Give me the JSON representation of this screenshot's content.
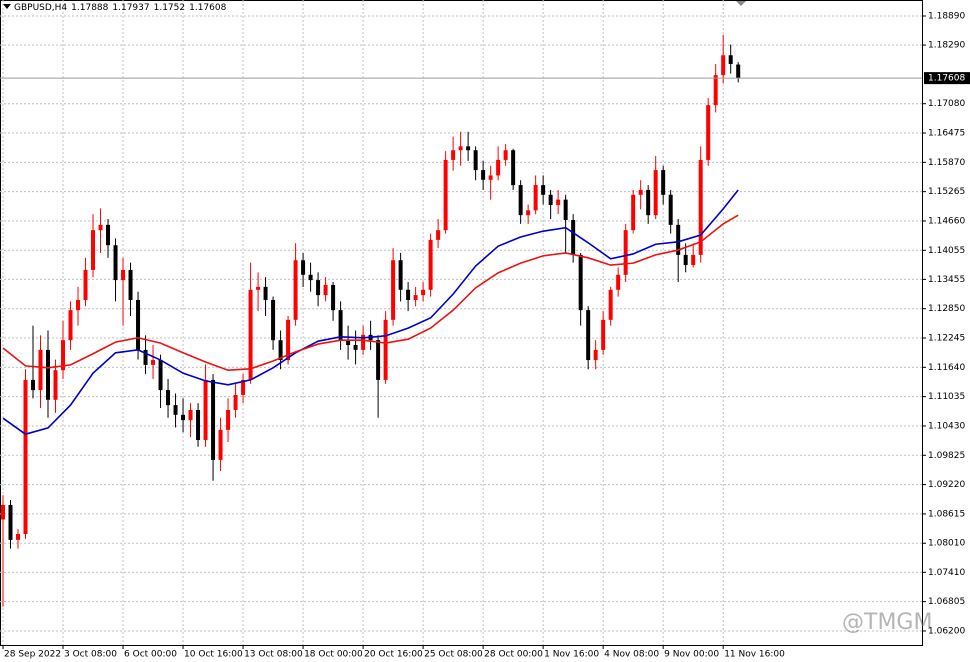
{
  "chart_data": {
    "type": "candlestick",
    "title": "GBPUSD,H4",
    "watermark": "@TMGM",
    "bull_color": "#ff0000",
    "bear_color": "#000000",
    "grid": true,
    "xlim": [
      -0.4,
      122.5
    ],
    "ylim": [
      1.0591,
      1.1922
    ],
    "xticks": [
      {
        "value": 0,
        "label": "28 Sep 2022"
      },
      {
        "value": 8,
        "label": "3 Oct 08:00"
      },
      {
        "value": 16,
        "label": "6 Oct 00:00"
      },
      {
        "value": 24,
        "label": "10 Oct 16:00"
      },
      {
        "value": 32,
        "label": "13 Oct 08:00"
      },
      {
        "value": 40,
        "label": "18 Oct 00:00"
      },
      {
        "value": 48,
        "label": "20 Oct 16:00"
      },
      {
        "value": 56,
        "label": "25 Oct 08:00"
      },
      {
        "value": 64,
        "label": "28 Oct 00:00"
      },
      {
        "value": 72,
        "label": "1 Nov 16:00"
      },
      {
        "value": 80,
        "label": "4 Nov 08:00"
      },
      {
        "value": 88,
        "label": "9 Nov 00:00"
      },
      {
        "value": 96,
        "label": "11 Nov 16:00"
      }
    ],
    "yticks": [
      {
        "value": 1.1889,
        "label": "1.18890"
      },
      {
        "value": 1.1829,
        "label": "1.18290"
      },
      {
        "value": 1.1708,
        "label": "1.17080"
      },
      1.16475,
      {
        "value": 1.1587,
        "label": "1.15870"
      },
      1.15265,
      {
        "value": 1.1466,
        "label": "1.14660"
      },
      1.14055,
      1.13455,
      {
        "value": 1.1285,
        "label": "1.12850"
      },
      1.12245,
      {
        "value": 1.1164,
        "label": "1.11640"
      },
      1.11035,
      {
        "value": 1.1043,
        "label": "1.10430"
      },
      1.09825,
      {
        "value": 1.0922,
        "label": "1.09220"
      },
      1.08615,
      {
        "value": 1.0801,
        "label": "1.08010"
      },
      {
        "value": 1.0741,
        "label": "1.07410"
      },
      1.06805,
      {
        "value": 1.062,
        "label": "1.06200"
      }
    ],
    "ohlc": {
      "open": [
        1.085,
        1.088,
        1.0808,
        1.082,
        1.1138,
        1.1117,
        1.12,
        1.1097,
        1.1158,
        1.122,
        1.1282,
        1.1303,
        1.1365,
        1.1447,
        1.1458,
        1.1416,
        1.1344,
        1.1365,
        1.1303,
        1.12,
        1.1169,
        1.1179,
        1.1117,
        1.1086,
        1.1066,
        1.1055,
        1.1076,
        1.1014,
        1.1138,
        1.0973,
        1.1035,
        1.1076,
        1.1107,
        1.1138,
        1.1324,
        1.133,
        1.1303,
        1.122,
        1.1179,
        1.1262,
        1.1385,
        1.1355,
        1.1344,
        1.1313,
        1.1334,
        1.1282,
        1.122,
        1.121,
        1.12,
        1.1231,
        1.122,
        1.1138,
        1.1262,
        1.1385,
        1.1324,
        1.1303,
        1.1313,
        1.1324,
        1.1427,
        1.1447,
        1.1592,
        1.1612,
        1.162,
        1.1612,
        1.1571,
        1.1551,
        1.156,
        1.1592,
        1.1612,
        1.154,
        1.1478,
        1.1488,
        1.154,
        1.152,
        1.1499,
        1.151,
        1.1468,
        1.1396,
        1.1282,
        1.1179,
        1.12,
        1.1262,
        1.1324,
        1.1355,
        1.1447,
        1.152,
        1.153,
        1.1478,
        1.1571,
        1.152,
        1.1458,
        1.1396,
        1.1375,
        1.1396,
        1.1592,
        1.1705,
        1.1767,
        1.1808,
        1.17888
      ],
      "high": [
        1.09,
        1.089,
        1.083,
        1.116,
        1.125,
        1.123,
        1.124,
        1.118,
        1.126,
        1.13,
        1.133,
        1.139,
        1.148,
        1.1492,
        1.147,
        1.143,
        1.139,
        1.138,
        1.132,
        1.123,
        1.121,
        1.119,
        1.114,
        1.111,
        1.11,
        1.109,
        1.109,
        1.117,
        1.115,
        1.106,
        1.11,
        1.113,
        1.115,
        1.138,
        1.136,
        1.135,
        1.131,
        1.124,
        1.127,
        1.142,
        1.14,
        1.138,
        1.136,
        1.135,
        1.134,
        1.13,
        1.125,
        1.124,
        1.125,
        1.126,
        1.123,
        1.128,
        1.141,
        1.14,
        1.134,
        1.133,
        1.134,
        1.144,
        1.147,
        1.161,
        1.164,
        1.165,
        1.165,
        1.162,
        1.159,
        1.158,
        1.162,
        1.1625,
        1.1615,
        1.155,
        1.15,
        1.156,
        1.156,
        1.153,
        1.153,
        1.152,
        1.148,
        1.14,
        1.129,
        1.122,
        1.128,
        1.133,
        1.137,
        1.146,
        1.153,
        1.155,
        1.154,
        1.16,
        1.158,
        1.153,
        1.147,
        1.142,
        1.142,
        1.162,
        1.172,
        1.179,
        1.185,
        1.183,
        1.17937
      ],
      "low": [
        1.067,
        1.079,
        1.079,
        1.081,
        1.11,
        1.108,
        1.106,
        1.107,
        1.114,
        1.12,
        1.125,
        1.129,
        1.135,
        1.14,
        1.139,
        1.13,
        1.125,
        1.127,
        1.118,
        1.115,
        1.114,
        1.108,
        1.106,
        1.104,
        1.103,
        1.102,
        1.1,
        1.1,
        1.093,
        1.095,
        1.101,
        1.106,
        1.109,
        1.113,
        1.128,
        1.127,
        1.12,
        1.116,
        1.117,
        1.125,
        1.133,
        1.132,
        1.129,
        1.13,
        1.126,
        1.12,
        1.118,
        1.117,
        1.119,
        1.12,
        1.106,
        1.113,
        1.125,
        1.13,
        1.128,
        1.129,
        1.13,
        1.131,
        1.141,
        1.144,
        1.157,
        1.158,
        1.159,
        1.155,
        1.153,
        1.151,
        1.155,
        1.158,
        1.153,
        1.146,
        1.146,
        1.148,
        1.15,
        1.147,
        1.148,
        1.14,
        1.138,
        1.125,
        1.116,
        1.116,
        1.119,
        1.125,
        1.131,
        1.134,
        1.144,
        1.149,
        1.146,
        1.147,
        1.15,
        1.144,
        1.134,
        1.136,
        1.137,
        1.138,
        1.158,
        1.169,
        1.175,
        1.177,
        1.1752
      ],
      "close": [
        1.088,
        1.0808,
        1.082,
        1.1138,
        1.1117,
        1.12,
        1.1097,
        1.1158,
        1.122,
        1.1282,
        1.1303,
        1.1365,
        1.1447,
        1.1458,
        1.1416,
        1.1344,
        1.1365,
        1.1303,
        1.12,
        1.1169,
        1.1179,
        1.1117,
        1.1086,
        1.1066,
        1.1055,
        1.1076,
        1.1014,
        1.1138,
        1.0973,
        1.1035,
        1.1076,
        1.1107,
        1.1138,
        1.1324,
        1.133,
        1.1303,
        1.122,
        1.1179,
        1.1262,
        1.1385,
        1.1355,
        1.1344,
        1.1313,
        1.1334,
        1.1282,
        1.122,
        1.121,
        1.12,
        1.1231,
        1.122,
        1.1138,
        1.1262,
        1.1385,
        1.1324,
        1.1303,
        1.1313,
        1.1324,
        1.1427,
        1.1447,
        1.1592,
        1.1612,
        1.162,
        1.1612,
        1.1571,
        1.1551,
        1.156,
        1.1592,
        1.1612,
        1.154,
        1.1478,
        1.1488,
        1.154,
        1.152,
        1.1499,
        1.151,
        1.1468,
        1.1396,
        1.1282,
        1.1179,
        1.12,
        1.1262,
        1.1324,
        1.1355,
        1.1447,
        1.152,
        1.153,
        1.1478,
        1.1571,
        1.152,
        1.1458,
        1.1396,
        1.1375,
        1.1396,
        1.1592,
        1.1705,
        1.1767,
        1.1808,
        1.179,
        1.17608
      ]
    },
    "series": [
      {
        "color": "#0000cc",
        "x": [
          0,
          3,
          6,
          9,
          12,
          15,
          18,
          21,
          24,
          27,
          30,
          33,
          36,
          39,
          42,
          45,
          48,
          51,
          54,
          57,
          60,
          63,
          66,
          69,
          72,
          75,
          78,
          81,
          84,
          87,
          90,
          93,
          96,
          98
        ],
        "values": [
          1.1059,
          1.1026,
          1.1039,
          1.1086,
          1.1152,
          1.1194,
          1.12,
          1.1179,
          1.1152,
          1.1136,
          1.1128,
          1.1138,
          1.1163,
          1.1194,
          1.1218,
          1.1227,
          1.1225,
          1.1229,
          1.1245,
          1.1266,
          1.1315,
          1.1373,
          1.1414,
          1.1433,
          1.1445,
          1.1452,
          1.1421,
          1.1388,
          1.1398,
          1.1418,
          1.1423,
          1.1437,
          1.1491,
          1.153
        ]
      },
      {
        "color": "#ee1111",
        "x": [
          0,
          3,
          6,
          9,
          12,
          15,
          18,
          21,
          24,
          27,
          30,
          33,
          36,
          39,
          42,
          45,
          48,
          51,
          54,
          57,
          60,
          63,
          66,
          69,
          72,
          75,
          78,
          81,
          84,
          87,
          90,
          93,
          96,
          98
        ],
        "values": [
          1.1204,
          1.1167,
          1.1163,
          1.1169,
          1.1192,
          1.1216,
          1.1225,
          1.1214,
          1.1194,
          1.1175,
          1.1158,
          1.1161,
          1.1177,
          1.1196,
          1.1212,
          1.122,
          1.122,
          1.1214,
          1.1222,
          1.1245,
          1.1282,
          1.1328,
          1.1359,
          1.1379,
          1.1394,
          1.14,
          1.139,
          1.1375,
          1.1379,
          1.1396,
          1.1406,
          1.1423,
          1.146,
          1.1478
        ]
      }
    ]
  }
}
